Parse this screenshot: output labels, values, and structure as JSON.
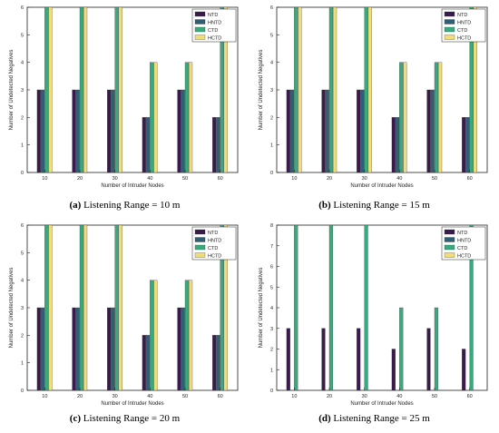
{
  "colors": {
    "NTD": "#3b1a4f",
    "HNTD": "#2f5f73",
    "CTD": "#3aaa7e",
    "HCTD": "#f2dc7a"
  },
  "legend_labels": [
    "NTD",
    "HNTD",
    "CTD",
    "HCTD"
  ],
  "captions": [
    {
      "tag": "(a)",
      "text": "Listening Range = 10 m"
    },
    {
      "tag": "(b)",
      "text": "Listening Range = 15 m"
    },
    {
      "tag": "(c)",
      "text": "Listening Range = 20 m"
    },
    {
      "tag": "(d)",
      "text": "Listening Range = 25 m"
    }
  ],
  "chart_data": [
    {
      "type": "bar",
      "xlabel": "Number of Intruder Nodes",
      "ylabel": "Number of Undetected Negatives",
      "categories": [
        "10",
        "20",
        "30",
        "40",
        "50",
        "60"
      ],
      "ylim": [
        0,
        6
      ],
      "yticks": [
        0,
        1,
        2,
        3,
        4,
        5,
        6
      ],
      "legend": "top-right",
      "series": [
        {
          "name": "NTD",
          "values": [
            3,
            3,
            3,
            2,
            3,
            2
          ]
        },
        {
          "name": "HNTD",
          "values": [
            3,
            3,
            3,
            2,
            3,
            2
          ]
        },
        {
          "name": "CTD",
          "values": [
            6,
            6,
            6,
            4,
            4,
            6
          ]
        },
        {
          "name": "HCTD",
          "values": [
            6,
            6,
            6,
            4,
            4,
            6
          ]
        }
      ]
    },
    {
      "type": "bar",
      "xlabel": "Number of Intruder Nodes",
      "ylabel": "Number of Undetected Negatives",
      "categories": [
        "10",
        "20",
        "30",
        "40",
        "50",
        "60"
      ],
      "ylim": [
        0,
        6
      ],
      "yticks": [
        0,
        1,
        2,
        3,
        4,
        5,
        6
      ],
      "legend": "top-right",
      "series": [
        {
          "name": "NTD",
          "values": [
            3,
            3,
            3,
            2,
            3,
            2
          ]
        },
        {
          "name": "HNTD",
          "values": [
            3,
            3,
            3,
            2,
            3,
            2
          ]
        },
        {
          "name": "CTD",
          "values": [
            6,
            6,
            6,
            4,
            4,
            6
          ]
        },
        {
          "name": "HCTD",
          "values": [
            6,
            6,
            6,
            4,
            4,
            6
          ]
        }
      ]
    },
    {
      "type": "bar",
      "xlabel": "Number of Intruder Nodes",
      "ylabel": "Number of Undetected Negatives",
      "categories": [
        "10",
        "20",
        "30",
        "40",
        "50",
        "60"
      ],
      "ylim": [
        0,
        6
      ],
      "yticks": [
        0,
        1,
        2,
        3,
        4,
        5,
        6
      ],
      "legend": "top-right",
      "series": [
        {
          "name": "NTD",
          "values": [
            3,
            3,
            3,
            2,
            3,
            2
          ]
        },
        {
          "name": "HNTD",
          "values": [
            3,
            3,
            3,
            2,
            3,
            2
          ]
        },
        {
          "name": "CTD",
          "values": [
            6,
            6,
            6,
            4,
            4,
            6
          ]
        },
        {
          "name": "HCTD",
          "values": [
            6,
            6,
            6,
            4,
            4,
            6
          ]
        }
      ]
    },
    {
      "type": "bar",
      "xlabel": "Number of Intruder Nodes",
      "ylabel": "Number of Undetected Negatives",
      "categories": [
        "10",
        "20",
        "30",
        "40",
        "50",
        "60"
      ],
      "ylim": [
        0,
        8
      ],
      "yticks": [
        0,
        1,
        2,
        3,
        4,
        5,
        6,
        7,
        8
      ],
      "legend": "top-right",
      "series": [
        {
          "name": "NTD",
          "values": [
            3,
            3,
            3,
            2,
            3,
            2
          ]
        },
        {
          "name": "HNTD",
          "values": [
            0,
            0,
            0,
            0,
            0,
            0
          ]
        },
        {
          "name": "CTD",
          "values": [
            8,
            8,
            8,
            4,
            4,
            8
          ]
        },
        {
          "name": "HCTD",
          "values": [
            0,
            0,
            0,
            0,
            0,
            0
          ]
        }
      ]
    }
  ]
}
